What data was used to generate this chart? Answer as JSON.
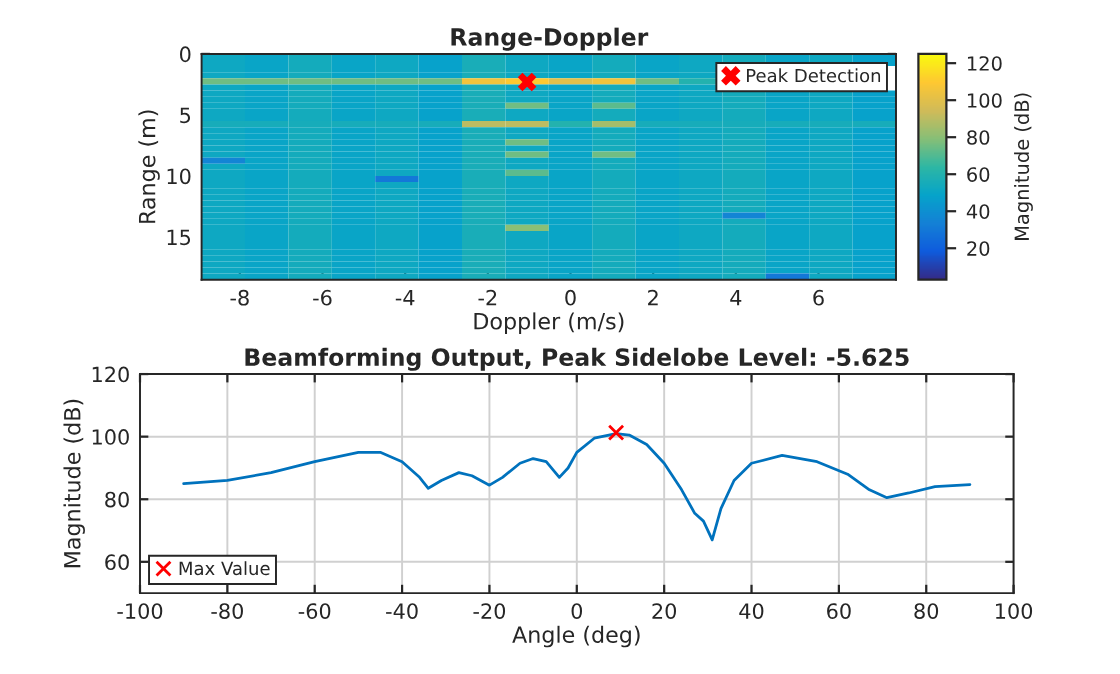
{
  "chart_data": [
    {
      "type": "heatmap",
      "title": "Range-Doppler",
      "xlabel": "Doppler (m/s)",
      "ylabel": "Range (m)",
      "clabel": "Magnitude (dB)",
      "x": [
        -8.4,
        -7.35,
        -6.3,
        -5.25,
        -4.2,
        -3.15,
        -2.1,
        -1.05,
        0,
        1.05,
        2.1,
        3.15,
        4.2,
        5.25,
        6.3,
        7.35
      ],
      "xlim": [
        -8.925,
        7.875
      ],
      "ylim": [
        18.5,
        0
      ],
      "yticks": [
        0,
        5,
        10,
        15
      ],
      "xticks": [
        -8,
        -6,
        -4,
        -2,
        0,
        2,
        4,
        6
      ],
      "clim": [
        3,
        125
      ],
      "cticks": [
        20,
        40,
        60,
        80,
        100,
        120
      ],
      "cells": [
        [
          52,
          50,
          54,
          50,
          52,
          48,
          56,
          52,
          50,
          54,
          50,
          52,
          54,
          50,
          52,
          48
        ],
        [
          52,
          50,
          54,
          50,
          52,
          48,
          56,
          52,
          50,
          54,
          50,
          52,
          54,
          50,
          52,
          48
        ],
        [
          52,
          50,
          54,
          50,
          52,
          48,
          56,
          52,
          50,
          54,
          50,
          52,
          null,
          null,
          null,
          null
        ],
        [
          52,
          50,
          54,
          50,
          52,
          48,
          56,
          52,
          50,
          54,
          50,
          52,
          null,
          null,
          null,
          null
        ],
        [
          75,
          75,
          75,
          75,
          75,
          75,
          105,
          110,
          100,
          105,
          75,
          60,
          null,
          null,
          null,
          null
        ],
        [
          52,
          50,
          54,
          50,
          52,
          48,
          56,
          52,
          50,
          54,
          50,
          52,
          null,
          null,
          null,
          null
        ],
        [
          52,
          50,
          54,
          50,
          52,
          48,
          56,
          52,
          50,
          54,
          50,
          52,
          54,
          50,
          52,
          48
        ],
        [
          52,
          50,
          54,
          50,
          52,
          48,
          56,
          52,
          50,
          54,
          50,
          52,
          54,
          50,
          52,
          48
        ],
        [
          52,
          50,
          54,
          50,
          52,
          48,
          56,
          75,
          50,
          72,
          50,
          52,
          54,
          50,
          52,
          48
        ],
        [
          52,
          50,
          54,
          50,
          52,
          48,
          56,
          52,
          50,
          54,
          50,
          52,
          54,
          50,
          52,
          48
        ],
        [
          52,
          50,
          54,
          50,
          52,
          48,
          56,
          52,
          50,
          54,
          50,
          52,
          54,
          50,
          52,
          48
        ],
        [
          55,
          55,
          55,
          55,
          55,
          55,
          90,
          90,
          60,
          85,
          55,
          55,
          55,
          55,
          55,
          55
        ],
        [
          52,
          50,
          54,
          50,
          52,
          48,
          56,
          52,
          50,
          54,
          50,
          52,
          54,
          50,
          52,
          48
        ],
        [
          52,
          50,
          54,
          50,
          52,
          48,
          56,
          52,
          50,
          54,
          50,
          52,
          54,
          50,
          52,
          48
        ],
        [
          52,
          50,
          54,
          50,
          52,
          48,
          56,
          75,
          50,
          54,
          50,
          52,
          54,
          50,
          52,
          48
        ],
        [
          52,
          50,
          54,
          50,
          52,
          48,
          56,
          52,
          50,
          54,
          50,
          52,
          54,
          50,
          52,
          48
        ],
        [
          52,
          50,
          54,
          50,
          52,
          48,
          56,
          75,
          50,
          75,
          50,
          52,
          54,
          50,
          52,
          48
        ],
        [
          35,
          50,
          54,
          50,
          52,
          48,
          56,
          52,
          50,
          54,
          50,
          52,
          54,
          50,
          52,
          48
        ],
        [
          52,
          50,
          54,
          50,
          52,
          48,
          56,
          52,
          50,
          54,
          50,
          52,
          54,
          50,
          52,
          48
        ],
        [
          52,
          50,
          54,
          50,
          52,
          48,
          56,
          72,
          50,
          54,
          50,
          52,
          54,
          50,
          52,
          48
        ],
        [
          52,
          50,
          54,
          50,
          30,
          48,
          56,
          52,
          50,
          54,
          50,
          52,
          54,
          50,
          52,
          48
        ],
        [
          52,
          50,
          54,
          50,
          52,
          48,
          56,
          52,
          50,
          54,
          50,
          52,
          54,
          50,
          52,
          48
        ],
        [
          52,
          50,
          54,
          50,
          52,
          48,
          56,
          52,
          50,
          54,
          50,
          52,
          54,
          50,
          52,
          48
        ],
        [
          52,
          50,
          54,
          50,
          52,
          48,
          56,
          52,
          50,
          54,
          50,
          52,
          54,
          50,
          52,
          48
        ],
        [
          52,
          50,
          54,
          50,
          52,
          48,
          56,
          52,
          50,
          54,
          50,
          52,
          54,
          50,
          52,
          48
        ],
        [
          52,
          50,
          54,
          50,
          52,
          48,
          56,
          52,
          50,
          54,
          50,
          52,
          54,
          50,
          52,
          48
        ],
        [
          52,
          50,
          54,
          50,
          52,
          48,
          56,
          52,
          50,
          54,
          50,
          52,
          35,
          50,
          52,
          48
        ],
        [
          52,
          50,
          54,
          50,
          52,
          48,
          56,
          52,
          50,
          54,
          50,
          52,
          54,
          50,
          52,
          48
        ],
        [
          52,
          50,
          54,
          50,
          52,
          48,
          56,
          80,
          50,
          54,
          50,
          52,
          54,
          50,
          52,
          48
        ],
        [
          52,
          50,
          54,
          50,
          52,
          48,
          56,
          52,
          50,
          54,
          50,
          52,
          54,
          50,
          52,
          48
        ],
        [
          52,
          50,
          54,
          50,
          52,
          48,
          56,
          52,
          50,
          54,
          50,
          52,
          54,
          50,
          52,
          48
        ],
        [
          52,
          50,
          54,
          50,
          52,
          48,
          56,
          52,
          50,
          54,
          50,
          52,
          54,
          50,
          52,
          48
        ],
        [
          52,
          50,
          54,
          50,
          52,
          48,
          56,
          52,
          50,
          54,
          50,
          52,
          54,
          50,
          52,
          48
        ],
        [
          52,
          50,
          54,
          50,
          52,
          48,
          56,
          52,
          50,
          54,
          50,
          52,
          54,
          50,
          52,
          48
        ],
        [
          52,
          50,
          54,
          50,
          52,
          48,
          56,
          52,
          50,
          54,
          50,
          52,
          54,
          50,
          52,
          48
        ],
        [
          52,
          50,
          54,
          50,
          52,
          48,
          56,
          52,
          50,
          54,
          50,
          52,
          54,
          50,
          52,
          48
        ],
        [
          52,
          50,
          54,
          50,
          52,
          48,
          56,
          52,
          50,
          54,
          50,
          52,
          54,
          30,
          52,
          48
        ]
      ],
      "series": [
        {
          "name": "Peak Detection",
          "type": "scatter",
          "marker": "cross",
          "color": "#ff0000",
          "x": [
            -1.05
          ],
          "values": [
            2.3
          ]
        }
      ],
      "legend": "top right"
    },
    {
      "type": "line",
      "title": "Beamforming Output, Peak Sidelobe Level: -5.625",
      "xlabel": "Angle (deg)",
      "ylabel": "Magnitude (dB)",
      "xlim": [
        -100,
        100
      ],
      "ylim": [
        50,
        120
      ],
      "xticks": [
        -100,
        -80,
        -60,
        -40,
        -20,
        0,
        20,
        40,
        60,
        80,
        100
      ],
      "yticks": [
        60,
        80,
        100,
        120
      ],
      "grid": true,
      "legend": "bottom left",
      "series": [
        {
          "type": "line",
          "color": "#0072bd",
          "x": [
            -90,
            -80,
            -70,
            -60,
            -50,
            -45,
            -40,
            -36,
            -34,
            -31,
            -27,
            -24,
            -20,
            -17,
            -13,
            -10,
            -7,
            -4,
            -2,
            0,
            4,
            9,
            12,
            16,
            20,
            24,
            27,
            29,
            31,
            33,
            36,
            40,
            47,
            55,
            62,
            67,
            71,
            76,
            82,
            90
          ],
          "values": [
            85,
            86,
            88.5,
            92,
            95,
            95,
            92,
            87,
            83.5,
            86,
            88.5,
            87.5,
            84.5,
            87,
            91.5,
            93,
            92,
            87,
            90,
            95,
            99.5,
            101,
            100.5,
            97.5,
            91.5,
            83,
            75.5,
            73,
            67,
            77,
            86,
            91.5,
            94,
            92,
            88,
            83,
            80.5,
            82,
            84,
            84.7
          ]
        },
        {
          "name": "Max Value",
          "type": "scatter",
          "marker": "cross",
          "color": "#ff0000",
          "x": [
            9
          ],
          "values": [
            101.3
          ]
        }
      ]
    }
  ]
}
